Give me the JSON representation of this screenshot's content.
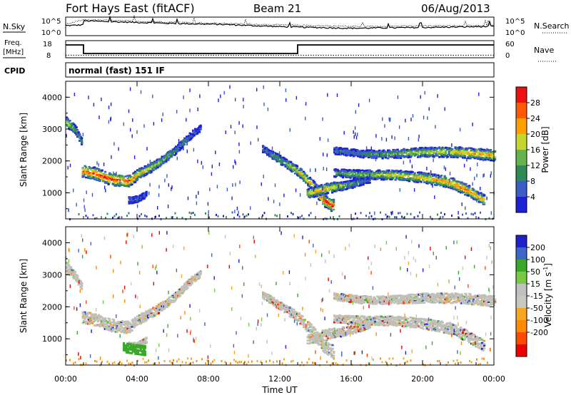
{
  "header": {
    "station": "Fort Hays East (fitACF)",
    "beam": "Beam 21",
    "date": "06/Aug/2013"
  },
  "strips": {
    "nsky_label": "N.Sky",
    "nsearch_label": "N.Search",
    "nsky_ticks": [
      "10^5",
      "10^0"
    ],
    "nsearch_ticks": [
      "10^5",
      "10^0"
    ],
    "freq_label": "Freq.",
    "freq_unit": "[MHz]",
    "freq_ticks": [
      "18",
      "8"
    ],
    "nave_label": "Nave",
    "nave_ticks": [
      "60",
      "0"
    ],
    "cpid_label": "CPID",
    "cpid_value": "normal (fast) 151 IF"
  },
  "colors": {
    "axis": "#000000",
    "power_scale": [
      "#1f1fd8",
      "#3c5ec4",
      "#2e8b57",
      "#66b24d",
      "#c6d62a",
      "#ffa000",
      "#ff5a00",
      "#ee1010"
    ],
    "velocity_scale": [
      "#ee0000",
      "#ff4a00",
      "#ff8c00",
      "#f5a623",
      "#c8c8c0",
      "#c0c0c0",
      "#7ac943",
      "#3aa82a",
      "#3f66c4",
      "#2020c8"
    ],
    "ground_scatter": "#c0c0b8"
  },
  "chart_data": [
    {
      "type": "line",
      "name": "nsky-nsearch-strip",
      "x_unit": "hours UT",
      "xlim": [
        0,
        24
      ],
      "series": [
        {
          "name": "N.Sky",
          "style": "solid",
          "x": [
            0,
            0.95,
            1,
            3,
            6,
            9,
            11,
            13,
            16,
            20,
            24
          ],
          "y": [
            2.7,
            2.9,
            4.0,
            3.7,
            3.3,
            3.0,
            2.6,
            2.3,
            2.0,
            2.2,
            2.5
          ]
        },
        {
          "name": "N.Search",
          "style": "dotted",
          "x": [
            0,
            1,
            4,
            8,
            12,
            16,
            20,
            24
          ],
          "y": [
            3.0,
            4.3,
            3.9,
            3.4,
            2.9,
            2.5,
            2.6,
            2.8
          ]
        }
      ],
      "ylim": [
        0,
        5
      ]
    },
    {
      "type": "line",
      "name": "freq-nave-strip",
      "x_unit": "hours UT",
      "xlim": [
        0,
        24
      ],
      "series": [
        {
          "name": "Freq.",
          "style": "solid",
          "x": [
            0,
            1,
            1,
            13,
            13,
            24
          ],
          "y": [
            15.5,
            15.5,
            10.5,
            10.5,
            15.5,
            15.5
          ]
        },
        {
          "name": "Nave",
          "style": "dotted",
          "x": [
            0,
            24
          ],
          "y": [
            9.5,
            9.5
          ]
        }
      ],
      "ylim": [
        8,
        18
      ]
    },
    {
      "type": "heatmap",
      "name": "power-panel",
      "ylabel": "Slant Range [km]",
      "xlim": [
        0,
        24
      ],
      "ylim": [
        180,
        4500
      ],
      "yticks": [
        1000,
        2000,
        3000,
        4000
      ],
      "colorbar": {
        "label": "Power [dB]",
        "ticks": [
          4,
          8,
          12,
          16,
          20,
          24,
          28
        ],
        "range": [
          0,
          32
        ]
      },
      "bands": [
        {
          "t": [
            0,
            0.5,
            0.9
          ],
          "r": [
            3250,
            3000,
            2600
          ],
          "p": [
            22,
            14,
            10
          ]
        },
        {
          "t": [
            0.9,
            1.5,
            2.5,
            3.5,
            4.0,
            5.0,
            6.0,
            7.0,
            7.5
          ],
          "r": [
            1700,
            1650,
            1450,
            1380,
            1600,
            1900,
            2300,
            2850,
            3050
          ],
          "p": [
            26,
            30,
            30,
            28,
            22,
            16,
            12,
            8,
            4
          ]
        },
        {
          "t": [
            3.5,
            4.0,
            4.5
          ],
          "r": [
            800,
            820,
            1000
          ],
          "p": [
            8,
            6,
            4
          ]
        },
        {
          "t": [
            11.0,
            12.0,
            13.0,
            13.8,
            14.4,
            15.0
          ],
          "r": [
            2400,
            2050,
            1700,
            1250,
            800,
            600
          ],
          "p": [
            8,
            14,
            20,
            26,
            30,
            32
          ]
        },
        {
          "t": [
            13.5,
            14.5,
            16.0,
            17.0
          ],
          "r": [
            1000,
            1150,
            1300,
            1450
          ],
          "p": [
            20,
            24,
            12,
            8
          ]
        },
        {
          "t": [
            15.0,
            16.5,
            18.5,
            20.0,
            21.5,
            22.5,
            23.4
          ],
          "r": [
            1650,
            1600,
            1580,
            1500,
            1350,
            1100,
            800
          ],
          "p": [
            12,
            16,
            20,
            22,
            26,
            26,
            24
          ]
        },
        {
          "t": [
            15.0,
            16.5,
            18.0,
            20.0,
            22.0,
            24.0
          ],
          "r": [
            2350,
            2250,
            2230,
            2300,
            2300,
            2200
          ],
          "p": [
            8,
            10,
            14,
            18,
            22,
            24
          ]
        }
      ]
    },
    {
      "type": "heatmap",
      "name": "velocity-panel",
      "xlabel": "Time UT",
      "ylabel": "Slant Range [km]",
      "xlim": [
        0,
        24
      ],
      "ylim": [
        180,
        4500
      ],
      "xticks": [
        "00:00",
        "04:00",
        "08:00",
        "12:00",
        "16:00",
        "20:00",
        "00:00"
      ],
      "yticks": [
        1000,
        2000,
        3000,
        4000
      ],
      "colorbar": {
        "label": "Velocity [m s^-1]",
        "ticks": [
          200,
          100,
          50,
          15,
          -15,
          -50,
          -100,
          -200
        ]
      },
      "green_patch": {
        "t": [
          3.2,
          4.4
        ],
        "r": [
          620,
          900
        ],
        "v": 60
      },
      "ground_scatter_bands": "same tracks as power-panel"
    }
  ],
  "axes": {
    "time_ticks": [
      "00:00",
      "04:00",
      "08:00",
      "12:00",
      "16:00",
      "20:00",
      "00:00"
    ],
    "range_ticks": [
      "1000",
      "2000",
      "3000",
      "4000"
    ],
    "xlabel": "Time UT",
    "ylabel": "Slant Range [km]",
    "power_cb_label": "Power [dB]",
    "power_cb_ticks": [
      "4",
      "8",
      "12",
      "16",
      "20",
      "24",
      "28"
    ],
    "vel_cb_label_main": "Velocity [m s",
    "vel_cb_label_sup": "-1",
    "vel_cb_label_end": "]",
    "vel_cb_ticks": [
      "200",
      "100",
      "50",
      "15",
      "-15",
      "-50",
      "-100",
      "-200"
    ]
  }
}
